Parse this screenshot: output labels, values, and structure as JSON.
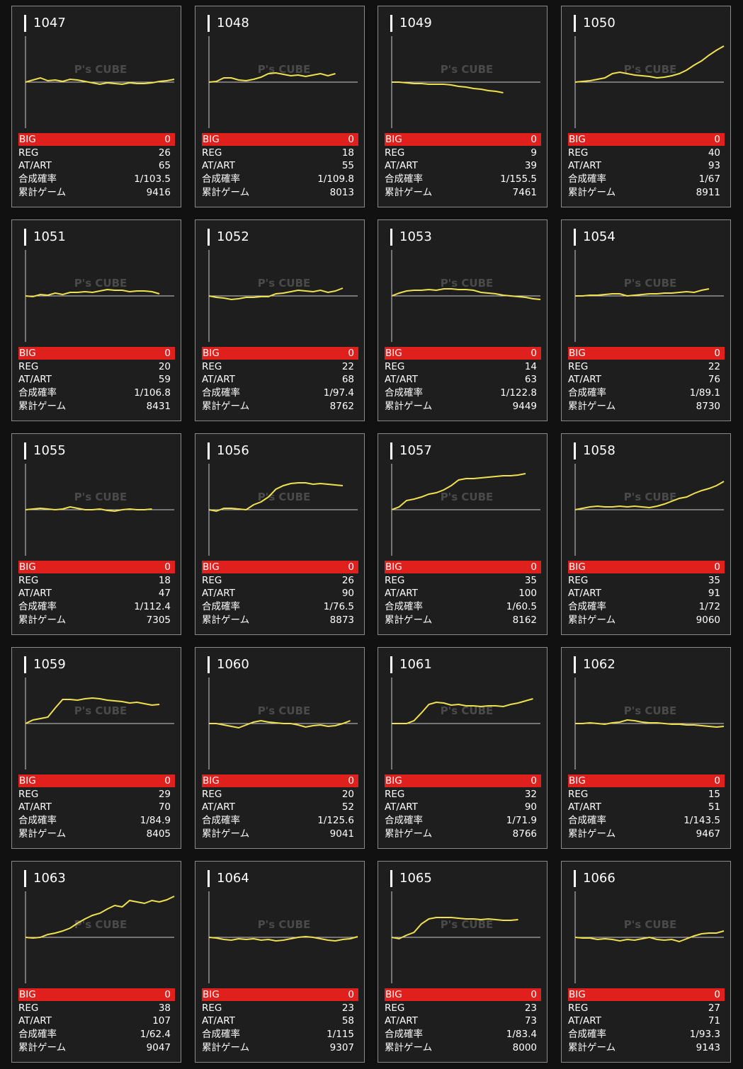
{
  "labels": {
    "big": "BIG",
    "reg": "REG",
    "at": "AT/ART",
    "prob": "合成確率",
    "games": "累計ゲーム"
  },
  "watermark": "P's CUBE",
  "chart_scale": {
    "xlim": [
      0,
      20
    ],
    "ylim": [
      -65,
      65
    ]
  },
  "machines": [
    {
      "number": 1047,
      "big": 0,
      "reg": 26,
      "at": 65,
      "prob": "1/103.5",
      "games": 9416,
      "chart": {
        "type": "line",
        "color": "#f0e050",
        "values": [
          0,
          3,
          6,
          2,
          3,
          1,
          4,
          3,
          1,
          -1,
          -3,
          -1,
          -2,
          -3,
          -1,
          -2,
          -2,
          -1,
          1,
          2,
          4
        ]
      }
    },
    {
      "number": 1048,
      "big": 0,
      "reg": 18,
      "at": 55,
      "prob": "1/109.8",
      "games": 8013,
      "chart": {
        "type": "line",
        "color": "#f0e050",
        "values": [
          0,
          1,
          6,
          6,
          3,
          2,
          4,
          7,
          12,
          13,
          11,
          9,
          10,
          8,
          10,
          12,
          9,
          12
        ]
      }
    },
    {
      "number": 1049,
      "big": 0,
      "reg": 9,
      "at": 39,
      "prob": "1/155.5",
      "games": 7461,
      "chart": {
        "type": "line",
        "color": "#f0e050",
        "values": [
          0,
          0,
          -1,
          -2,
          -2,
          -3,
          -3,
          -3,
          -4,
          -6,
          -7,
          -9,
          -10,
          -12,
          -13,
          -15
        ]
      }
    },
    {
      "number": 1050,
      "big": 0,
      "reg": 40,
      "at": 93,
      "prob": "1/67",
      "games": 8911,
      "chart": {
        "type": "line",
        "color": "#f0e050",
        "values": [
          0,
          1,
          2,
          4,
          6,
          12,
          14,
          12,
          10,
          9,
          8,
          6,
          7,
          9,
          12,
          17,
          24,
          30,
          38,
          45,
          51
        ]
      }
    },
    {
      "number": 1051,
      "big": 0,
      "reg": 20,
      "at": 59,
      "prob": "1/106.8",
      "games": 8431,
      "chart": {
        "type": "line",
        "color": "#f0e050",
        "values": [
          0,
          -1,
          2,
          1,
          4,
          2,
          5,
          5,
          6,
          5,
          7,
          9,
          8,
          8,
          6,
          7,
          7,
          6,
          3
        ]
      }
    },
    {
      "number": 1052,
      "big": 0,
      "reg": 22,
      "at": 68,
      "prob": "1/97.4",
      "games": 8762,
      "chart": {
        "type": "line",
        "color": "#f0e050",
        "values": [
          0,
          -2,
          -3,
          -5,
          -4,
          -2,
          -2,
          -1,
          -1,
          3,
          4,
          6,
          8,
          7,
          6,
          8,
          5,
          7,
          11
        ]
      }
    },
    {
      "number": 1053,
      "big": 0,
      "reg": 14,
      "at": 63,
      "prob": "1/122.8",
      "games": 9449,
      "chart": {
        "type": "line",
        "color": "#f0e050",
        "values": [
          0,
          4,
          7,
          8,
          8,
          9,
          8,
          10,
          10,
          9,
          9,
          8,
          5,
          4,
          3,
          1,
          0,
          -1,
          -2,
          -4,
          -5
        ]
      }
    },
    {
      "number": 1054,
      "big": 0,
      "reg": 22,
      "at": 76,
      "prob": "1/89.1",
      "games": 8730,
      "chart": {
        "type": "line",
        "color": "#f0e050",
        "values": [
          0,
          0,
          1,
          1,
          2,
          3,
          3,
          0,
          1,
          2,
          3,
          3,
          4,
          4,
          5,
          6,
          5,
          8,
          10
        ]
      }
    },
    {
      "number": 1055,
      "big": 0,
      "reg": 18,
      "at": 47,
      "prob": "1/112.4",
      "games": 7305,
      "chart": {
        "type": "line",
        "color": "#f0e050",
        "values": [
          0,
          1,
          2,
          1,
          0,
          1,
          4,
          2,
          0,
          0,
          1,
          -1,
          -2,
          0,
          1,
          0,
          0,
          1
        ]
      }
    },
    {
      "number": 1056,
      "big": 0,
      "reg": 26,
      "at": 90,
      "prob": "1/76.5",
      "games": 8873,
      "chart": {
        "type": "line",
        "color": "#f0e050",
        "values": [
          0,
          -2,
          2,
          2,
          1,
          0,
          7,
          11,
          18,
          29,
          34,
          37,
          38,
          38,
          36,
          37,
          36,
          35,
          34
        ]
      }
    },
    {
      "number": 1057,
      "big": 0,
      "reg": 35,
      "at": 100,
      "prob": "1/60.5",
      "games": 8162,
      "chart": {
        "type": "line",
        "color": "#f0e050",
        "values": [
          0,
          4,
          13,
          15,
          18,
          22,
          24,
          28,
          34,
          42,
          44,
          44,
          45,
          46,
          47,
          48,
          48,
          49,
          51
        ]
      }
    },
    {
      "number": 1058,
      "big": 0,
      "reg": 35,
      "at": 91,
      "prob": "1/72",
      "games": 9060,
      "chart": {
        "type": "line",
        "color": "#f0e050",
        "values": [
          0,
          2,
          4,
          5,
          4,
          4,
          5,
          4,
          5,
          4,
          3,
          5,
          8,
          12,
          16,
          18,
          23,
          27,
          30,
          34,
          40
        ]
      }
    },
    {
      "number": 1059,
      "big": 0,
      "reg": 29,
      "at": 70,
      "prob": "1/84.9",
      "games": 8405,
      "chart": {
        "type": "line",
        "color": "#f0e050",
        "values": [
          0,
          5,
          7,
          9,
          22,
          34,
          34,
          33,
          35,
          36,
          35,
          33,
          32,
          31,
          29,
          30,
          28,
          26,
          27
        ]
      }
    },
    {
      "number": 1060,
      "big": 0,
      "reg": 20,
      "at": 52,
      "prob": "1/125.6",
      "games": 9041,
      "chart": {
        "type": "line",
        "color": "#f0e050",
        "values": [
          0,
          0,
          -2,
          -4,
          -6,
          -2,
          2,
          4,
          2,
          1,
          0,
          0,
          -2,
          -5,
          -3,
          -2,
          -4,
          -3,
          0,
          4
        ]
      }
    },
    {
      "number": 1061,
      "big": 0,
      "reg": 32,
      "at": 90,
      "prob": "1/71.9",
      "games": 8766,
      "chart": {
        "type": "line",
        "color": "#f0e050",
        "values": [
          0,
          0,
          0,
          4,
          15,
          27,
          30,
          29,
          26,
          27,
          25,
          25,
          24,
          25,
          25,
          24,
          27,
          29,
          32,
          35
        ]
      }
    },
    {
      "number": 1062,
      "big": 0,
      "reg": 15,
      "at": 51,
      "prob": "1/143.5",
      "games": 9467,
      "chart": {
        "type": "line",
        "color": "#f0e050",
        "values": [
          0,
          0,
          1,
          0,
          -1,
          1,
          2,
          5,
          4,
          2,
          1,
          1,
          0,
          -1,
          -1,
          -2,
          -2,
          -3,
          -4,
          -5,
          -4
        ]
      }
    },
    {
      "number": 1063,
      "big": 0,
      "reg": 38,
      "at": 107,
      "prob": "1/62.4",
      "games": 9047,
      "chart": {
        "type": "line",
        "color": "#f0e050",
        "values": [
          0,
          -1,
          0,
          4,
          6,
          9,
          13,
          20,
          26,
          31,
          34,
          40,
          45,
          43,
          52,
          50,
          48,
          52,
          50,
          53,
          58
        ]
      }
    },
    {
      "number": 1064,
      "big": 0,
      "reg": 23,
      "at": 58,
      "prob": "1/115",
      "games": 9307,
      "chart": {
        "type": "line",
        "color": "#f0e050",
        "values": [
          0,
          -1,
          -3,
          -4,
          -2,
          -3,
          -2,
          -4,
          -3,
          -5,
          -4,
          -2,
          0,
          1,
          0,
          -2,
          -4,
          -5,
          -3,
          -2,
          1
        ]
      }
    },
    {
      "number": 1065,
      "big": 0,
      "reg": 23,
      "at": 73,
      "prob": "1/83.4",
      "games": 8000,
      "chart": {
        "type": "line",
        "color": "#f0e050",
        "values": [
          0,
          -2,
          3,
          7,
          19,
          26,
          28,
          28,
          28,
          27,
          26,
          26,
          25,
          26,
          25,
          24,
          24,
          25
        ]
      }
    },
    {
      "number": 1066,
      "big": 0,
      "reg": 27,
      "at": 71,
      "prob": "1/93.3",
      "games": 9143,
      "chart": {
        "type": "line",
        "color": "#f0e050",
        "values": [
          0,
          -1,
          -1,
          -3,
          -2,
          -3,
          -5,
          -3,
          -4,
          -2,
          0,
          -3,
          -4,
          -3,
          -6,
          -2,
          2,
          5,
          6,
          6,
          9
        ]
      }
    }
  ]
}
